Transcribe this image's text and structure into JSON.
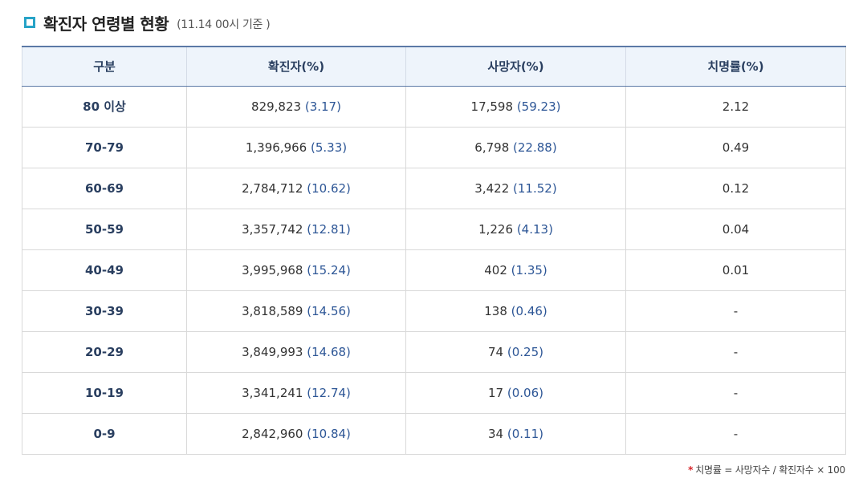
{
  "header": {
    "title": "확진자 연령별 현황",
    "subtitle": "(11.14 00시 기준 )"
  },
  "table": {
    "columns": [
      "구분",
      "확진자(%)",
      "사망자(%)",
      "치명률(%)"
    ],
    "rows": [
      {
        "age": "80 이상",
        "confirmed": "829,823",
        "confirmed_pct": "(3.17)",
        "deaths": "17,598",
        "deaths_pct": "(59.23)",
        "fatality": "2.12"
      },
      {
        "age": "70-79",
        "confirmed": "1,396,966",
        "confirmed_pct": "(5.33)",
        "deaths": "6,798",
        "deaths_pct": "(22.88)",
        "fatality": "0.49"
      },
      {
        "age": "60-69",
        "confirmed": "2,784,712",
        "confirmed_pct": "(10.62)",
        "deaths": "3,422",
        "deaths_pct": "(11.52)",
        "fatality": "0.12"
      },
      {
        "age": "50-59",
        "confirmed": "3,357,742",
        "confirmed_pct": "(12.81)",
        "deaths": "1,226",
        "deaths_pct": "(4.13)",
        "fatality": "0.04"
      },
      {
        "age": "40-49",
        "confirmed": "3,995,968",
        "confirmed_pct": "(15.24)",
        "deaths": "402",
        "deaths_pct": "(1.35)",
        "fatality": "0.01"
      },
      {
        "age": "30-39",
        "confirmed": "3,818,589",
        "confirmed_pct": "(14.56)",
        "deaths": "138",
        "deaths_pct": "(0.46)",
        "fatality": "-"
      },
      {
        "age": "20-29",
        "confirmed": "3,849,993",
        "confirmed_pct": "(14.68)",
        "deaths": "74",
        "deaths_pct": "(0.25)",
        "fatality": "-"
      },
      {
        "age": "10-19",
        "confirmed": "3,341,241",
        "confirmed_pct": "(12.74)",
        "deaths": "17",
        "deaths_pct": "(0.06)",
        "fatality": "-"
      },
      {
        "age": "0-9",
        "confirmed": "2,842,960",
        "confirmed_pct": "(10.84)",
        "deaths": "34",
        "deaths_pct": "(0.11)",
        "fatality": "-"
      }
    ]
  },
  "footnote": {
    "marker": "*",
    "text": "치명률 = 사망자수 / 확진자수 × 100"
  },
  "colors": {
    "accent": "#27a3c7",
    "header_bg": "#eef4fb",
    "percent_text": "#2d5696",
    "footnote_marker": "#d7262b"
  },
  "icons": {
    "title_marker": "square-bullet-icon"
  }
}
